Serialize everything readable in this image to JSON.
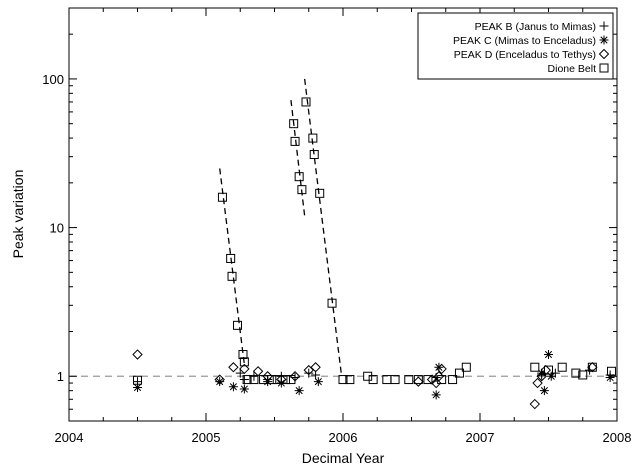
{
  "chart_data": {
    "type": "scatter",
    "title": "",
    "xlabel": "Decimal Year",
    "ylabel": "Peak variation",
    "xlim": [
      2004,
      2008
    ],
    "ylim": [
      0.5,
      300
    ],
    "yscale": "log",
    "grid": false,
    "legend_position": "top-right",
    "x_ticks": [
      "2004",
      "2005",
      "2006",
      "2007",
      "2008"
    ],
    "y_ticks": [
      {
        "value": 1,
        "label": "1"
      },
      {
        "value": 10,
        "label": "10"
      },
      {
        "value": 100,
        "label": "100"
      }
    ],
    "reference_line": {
      "y": 1.0,
      "style": "dashed",
      "color": "#999999"
    },
    "trend_lines": [
      {
        "points": [
          [
            2005.1,
            25.0
          ],
          [
            2005.28,
            1.2
          ]
        ],
        "style": "dashed"
      },
      {
        "points": [
          [
            2005.62,
            72.0
          ],
          [
            2005.72,
            12.0
          ]
        ],
        "style": "dashed"
      },
      {
        "points": [
          [
            2005.72,
            100.0
          ],
          [
            2005.99,
            1.0
          ]
        ],
        "style": "dashed"
      }
    ],
    "series": [
      {
        "name": "PEAK B (Janus to Mimas)",
        "marker": "plus",
        "points": [
          [
            2004.5,
            0.92
          ],
          [
            2005.25,
            1.05
          ],
          [
            2005.28,
            0.95
          ],
          [
            2005.35,
            1.0
          ],
          [
            2005.45,
            0.95
          ],
          [
            2005.55,
            1.0
          ],
          [
            2005.65,
            0.98
          ],
          [
            2005.75,
            1.05
          ],
          [
            2005.8,
            1.02
          ],
          [
            2006.68,
            0.98
          ],
          [
            2007.45,
            1.02
          ],
          [
            2007.55,
            1.05
          ],
          [
            2007.8,
            1.1
          ],
          [
            2007.95,
            1.02
          ]
        ]
      },
      {
        "name": "PEAK C (Mimas to Enceladus)",
        "marker": "asterisk",
        "points": [
          [
            2004.5,
            0.84
          ],
          [
            2005.1,
            0.92
          ],
          [
            2005.2,
            0.85
          ],
          [
            2005.28,
            0.82
          ],
          [
            2005.45,
            0.92
          ],
          [
            2005.55,
            0.9
          ],
          [
            2005.68,
            0.8
          ],
          [
            2005.82,
            0.92
          ],
          [
            2006.68,
            0.75
          ],
          [
            2006.7,
            1.15
          ],
          [
            2007.45,
            1.05
          ],
          [
            2007.47,
            0.8
          ],
          [
            2007.5,
            1.4
          ],
          [
            2007.52,
            1.0
          ],
          [
            2007.95,
            0.98
          ]
        ]
      },
      {
        "name": "PEAK D (Enceladus to Tethys)",
        "marker": "diamond",
        "points": [
          [
            2004.5,
            1.4
          ],
          [
            2005.1,
            0.95
          ],
          [
            2005.2,
            1.15
          ],
          [
            2005.28,
            1.12
          ],
          [
            2005.38,
            1.08
          ],
          [
            2005.45,
            1.0
          ],
          [
            2005.55,
            0.95
          ],
          [
            2005.65,
            1.0
          ],
          [
            2005.75,
            1.1
          ],
          [
            2005.8,
            1.15
          ],
          [
            2006.55,
            0.92
          ],
          [
            2006.65,
            0.95
          ],
          [
            2006.68,
            0.9
          ],
          [
            2006.7,
            1.0
          ],
          [
            2006.72,
            1.12
          ],
          [
            2007.4,
            0.65
          ],
          [
            2007.42,
            0.9
          ],
          [
            2007.45,
            1.0
          ],
          [
            2007.48,
            1.1
          ],
          [
            2007.82,
            1.15
          ]
        ]
      },
      {
        "name": "Dione Belt",
        "marker": "square",
        "points": [
          [
            2004.5,
            0.94
          ],
          [
            2005.12,
            16.0
          ],
          [
            2005.18,
            6.2
          ],
          [
            2005.19,
            4.7
          ],
          [
            2005.23,
            2.2
          ],
          [
            2005.27,
            1.4
          ],
          [
            2005.28,
            1.25
          ],
          [
            2005.3,
            0.95
          ],
          [
            2005.35,
            0.95
          ],
          [
            2005.42,
            0.95
          ],
          [
            2005.48,
            0.95
          ],
          [
            2005.52,
            0.95
          ],
          [
            2005.58,
            0.95
          ],
          [
            2005.62,
            0.95
          ],
          [
            2005.64,
            50.0
          ],
          [
            2005.65,
            38.0
          ],
          [
            2005.68,
            22.0
          ],
          [
            2005.7,
            18.0
          ],
          [
            2005.73,
            70.0
          ],
          [
            2005.78,
            40.0
          ],
          [
            2005.79,
            31.0
          ],
          [
            2005.83,
            17.0
          ],
          [
            2005.92,
            3.1
          ],
          [
            2006.0,
            0.95
          ],
          [
            2006.05,
            0.95
          ],
          [
            2006.18,
            1.0
          ],
          [
            2006.22,
            0.95
          ],
          [
            2006.32,
            0.95
          ],
          [
            2006.38,
            0.95
          ],
          [
            2006.48,
            0.95
          ],
          [
            2006.55,
            0.95
          ],
          [
            2006.62,
            0.95
          ],
          [
            2006.72,
            0.95
          ],
          [
            2006.8,
            0.95
          ],
          [
            2006.85,
            1.05
          ],
          [
            2006.9,
            1.15
          ],
          [
            2007.4,
            1.15
          ],
          [
            2007.5,
            1.1
          ],
          [
            2007.6,
            1.15
          ],
          [
            2007.7,
            1.05
          ],
          [
            2007.75,
            1.02
          ],
          [
            2007.82,
            1.15
          ],
          [
            2007.96,
            1.08
          ]
        ]
      }
    ]
  }
}
